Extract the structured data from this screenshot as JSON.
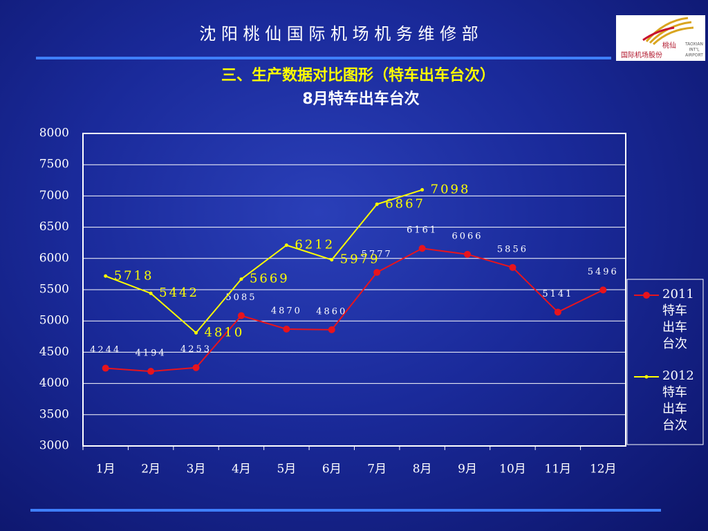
{
  "header": {
    "title": "沈 阳 桃 仙 国 际 机 场 机 务 维 修 部"
  },
  "logo": {
    "name_cn": "桃仙",
    "company": "国际机场股份",
    "en1": "TAOXIAN",
    "en2": "INT'L",
    "en3": "AIRPORT"
  },
  "chart_data": {
    "type": "line",
    "title": "三、生产数据对比图形（特车出车台次）",
    "subtitle": "8月特车出车台次",
    "categories": [
      "1月",
      "2月",
      "3月",
      "4月",
      "5月",
      "6月",
      "7月",
      "8月",
      "9月",
      "10月",
      "11月",
      "12月"
    ],
    "series": [
      {
        "name": "2011特车出车台次",
        "color": "#e8141c",
        "values": [
          4244,
          4194,
          4253,
          5085,
          4870,
          4860,
          5777,
          6161,
          6066,
          5856,
          5141,
          5496
        ]
      },
      {
        "name": "2012特车出车台次",
        "color": "#ffff00",
        "values": [
          5718,
          5442,
          4810,
          5669,
          6212,
          5979,
          6867,
          7098,
          null,
          null,
          null,
          null
        ]
      }
    ],
    "ylim": [
      3000,
      8000
    ],
    "yticks": [
      3000,
      3500,
      4000,
      4500,
      5000,
      5500,
      6000,
      6500,
      7000,
      7500,
      8000
    ],
    "grid": true
  }
}
